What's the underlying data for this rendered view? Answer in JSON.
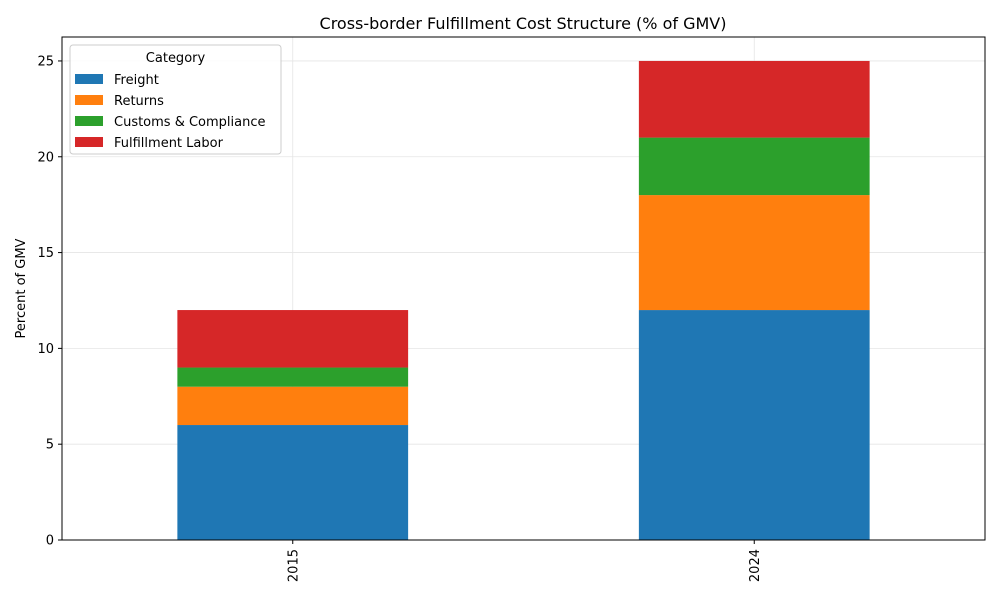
{
  "chart_data": {
    "type": "bar",
    "stacked": true,
    "title": "Cross-border Fulfillment Cost Structure (% of GMV)",
    "xlabel": "",
    "ylabel": "Percent of GMV",
    "categories": [
      "2015",
      "2024"
    ],
    "series": [
      {
        "name": "Freight",
        "color": "#1f77b4",
        "values": [
          6,
          12
        ]
      },
      {
        "name": "Returns",
        "color": "#ff7f0e",
        "values": [
          2,
          6
        ]
      },
      {
        "name": "Customs & Compliance",
        "color": "#2ca02c",
        "values": [
          1,
          3
        ]
      },
      {
        "name": "Fulfillment Labor",
        "color": "#d62728",
        "values": [
          3,
          4
        ]
      }
    ],
    "ylim": [
      0,
      26.25
    ],
    "yticks": [
      0,
      5,
      10,
      15,
      20,
      25
    ],
    "grid": true,
    "legend": {
      "title": "Category",
      "placement": "top-left"
    }
  }
}
